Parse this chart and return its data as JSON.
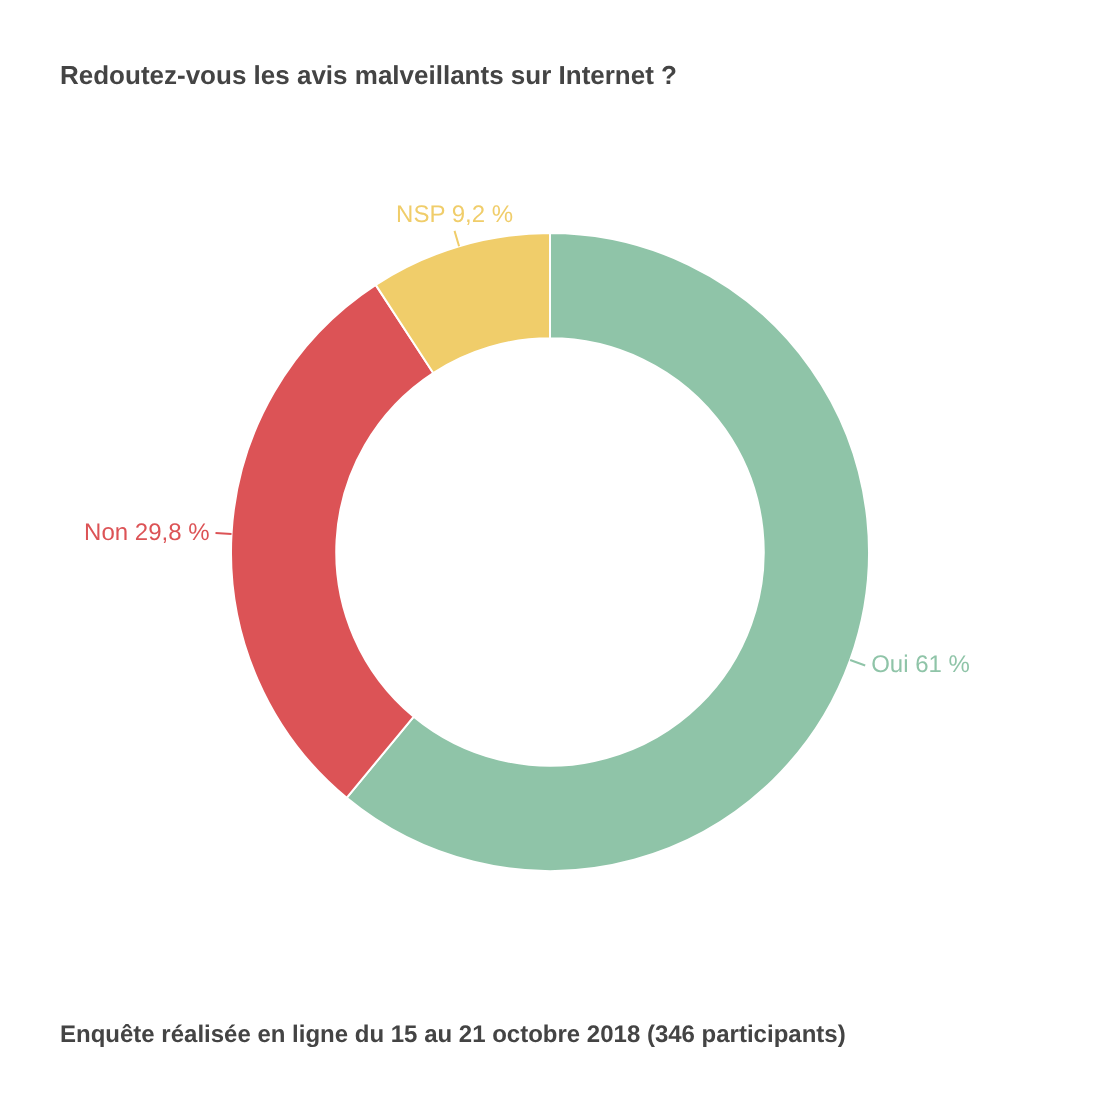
{
  "chart_data": {
    "type": "donut",
    "title": "Redoutez-vous les avis malveillants sur Internet ?",
    "categories": [
      "Oui",
      "Non",
      "NSP"
    ],
    "values": [
      61,
      29.8,
      9.2
    ],
    "colors": [
      "#8fc4a8",
      "#dc5356",
      "#f0cd6a"
    ],
    "value_labels": [
      "61 %",
      "29,8 %",
      "9,2 %"
    ],
    "legend": false,
    "annotations": [
      "Enquête réalisée en ligne du 15 au 21 octobre 2018  (346 participants)"
    ]
  }
}
